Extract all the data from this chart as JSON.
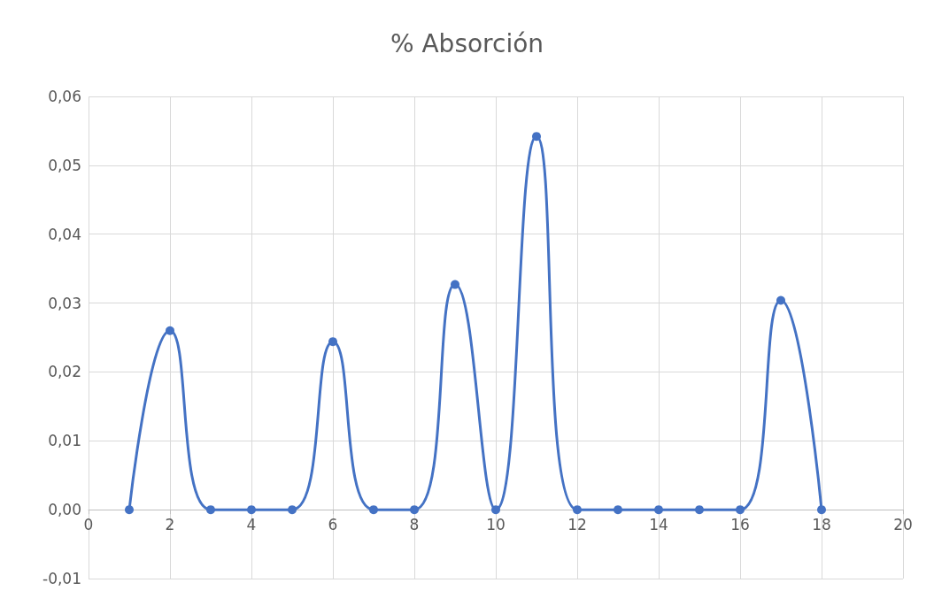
{
  "chart_data": {
    "type": "line",
    "title": "% Absorción",
    "x": [
      1,
      2,
      3,
      4,
      5,
      6,
      7,
      8,
      9,
      10,
      11,
      12,
      13,
      14,
      15,
      16,
      17,
      18
    ],
    "series": [
      {
        "color": "#4472c4",
        "values": [
          0,
          0.026,
          0,
          0,
          0,
          0.0244,
          0,
          0,
          0.0327,
          0,
          0.0542,
          0,
          0,
          0,
          0,
          0,
          0.0304,
          0
        ]
      }
    ],
    "xlim": [
      0,
      20
    ],
    "xticks": [
      0,
      2,
      4,
      6,
      8,
      10,
      12,
      14,
      16,
      18,
      20
    ],
    "ylim": [
      -0.01,
      0.06
    ],
    "yticks": [
      {
        "value": -0.01,
        "label": "-0,01"
      },
      {
        "value": 0,
        "label": "0,00"
      },
      {
        "value": 0.01,
        "label": "0,01"
      },
      {
        "value": 0.02,
        "label": "0,02"
      },
      {
        "value": 0.03,
        "label": "0,03"
      },
      {
        "value": 0.04,
        "label": "0,04"
      },
      {
        "value": 0.05,
        "label": "0,05"
      },
      {
        "value": 0.06,
        "label": "0,06"
      }
    ],
    "grid": true,
    "marker": "circle",
    "line_style": "solid"
  }
}
